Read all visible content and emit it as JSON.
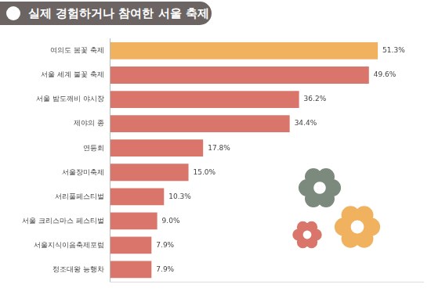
{
  "chart_data": {
    "type": "bar",
    "orientation": "horizontal",
    "title": "실제 경험하거나 참여한 서울 축제",
    "categories": [
      "여의도 봄꽃 축제",
      "서울 세계 불꽃 축제",
      "서울 밤도깨비 야시장",
      "제야의 종",
      "연등회",
      "서울장미축제",
      "서리풀페스티벌",
      "서울 크리스마스 페스티벌",
      "서울지식이음축제포럼",
      "정조대왕 능행차"
    ],
    "values": [
      51.3,
      49.6,
      36.2,
      34.4,
      17.8,
      15.0,
      10.3,
      9.0,
      7.9,
      7.9
    ],
    "value_labels": [
      "51.3%",
      "49.6%",
      "36.2%",
      "34.4%",
      "17.8%",
      "15.0%",
      "10.3%",
      "9.0%",
      "7.9%",
      "7.9%"
    ],
    "colors": [
      "#f0b25e",
      "#d9756a",
      "#d9756a",
      "#d9756a",
      "#d9756a",
      "#d9756a",
      "#d9756a",
      "#d9756a",
      "#d9756a",
      "#d9756a"
    ],
    "xlim": [
      0,
      60
    ],
    "grid": false,
    "data_labels": true,
    "tick_labels": "y"
  }
}
